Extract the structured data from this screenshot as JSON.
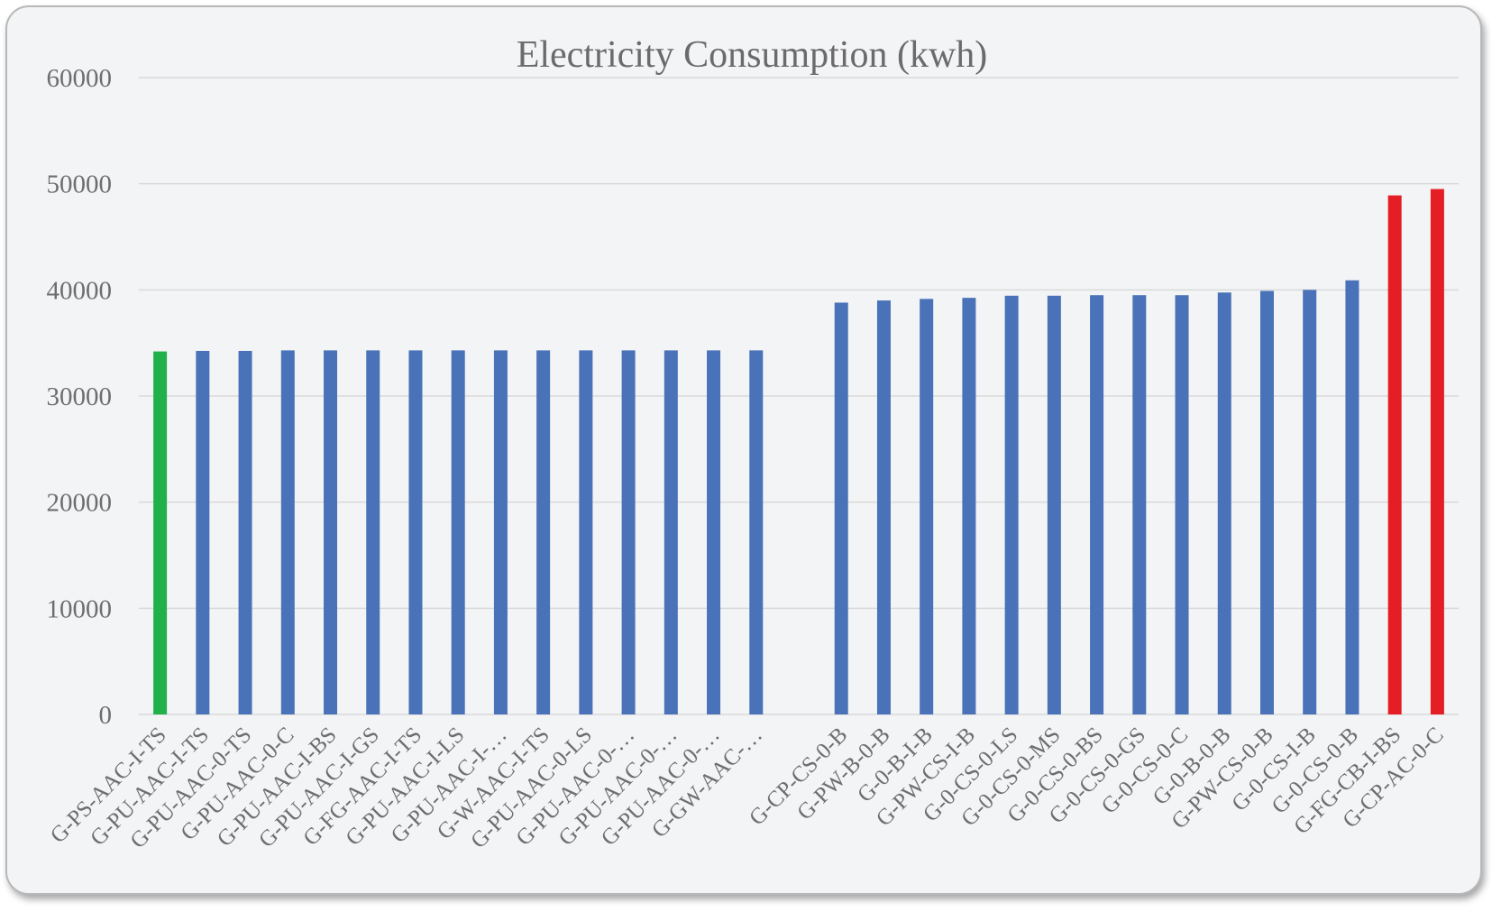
{
  "chart_data": {
    "type": "bar",
    "title": "Electricity Consumption (kwh)",
    "xlabel": "",
    "ylabel": "",
    "ylim": [
      0,
      60000
    ],
    "yticks": [
      0,
      10000,
      20000,
      30000,
      40000,
      50000,
      60000
    ],
    "ytick_labels": [
      "0",
      "10000",
      "20000",
      "30000",
      "40000",
      "50000",
      "60000"
    ],
    "grid": true,
    "legend": "none",
    "colors": {
      "lowest": "#21b04b",
      "default": "#4a72b8",
      "highest": "#e51e25",
      "grid": "#d9d9d9"
    },
    "categories": [
      "G-PS-AAC-I-TS",
      "G-PU-AAC-I-TS",
      "G-PU-AAC-0-TS",
      "G-PU-AAC-0-C",
      "G-PU-AAC-I-BS",
      "G-PU-AAC-I-GS",
      "G-FG-AAC-I-TS",
      "G-PU-AAC-I-LS",
      "G-PU-AAC-I-…",
      "G-W-AAC-I-TS",
      "G-PU-AAC-0-LS",
      "G-PU-AAC-0-…",
      "G-PU-AAC-0-…",
      "G-PU-AAC-0-…",
      "G-GW-AAC-…",
      "",
      "G-CP-CS-0-B",
      "G-PW-B-0-B",
      "G-0-B-I-B",
      "G-PW-CS-I-B",
      "G-0-CS-0-LS",
      "G-0-CS-0-MS",
      "G-0-CS-0-BS",
      "G-0-CS-0-GS",
      "G-0-CS-0-C",
      "G-0-B-0-B",
      "G-PW-CS-0-B",
      "G-0-CS-I-B",
      "G-0-CS-0-B",
      "G-FG-CB-I-BS",
      "G-CP-AC-0-C"
    ],
    "values": [
      34200,
      34250,
      34250,
      34300,
      34300,
      34300,
      34300,
      34300,
      34300,
      34300,
      34300,
      34300,
      34300,
      34300,
      34300,
      null,
      38800,
      39000,
      39150,
      39250,
      39450,
      39450,
      39500,
      39500,
      39500,
      39750,
      39900,
      40000,
      40900,
      48900,
      49500
    ],
    "bar_color_keys": [
      "lowest",
      "default",
      "default",
      "default",
      "default",
      "default",
      "default",
      "default",
      "default",
      "default",
      "default",
      "default",
      "default",
      "default",
      "default",
      "default",
      "default",
      "default",
      "default",
      "default",
      "default",
      "default",
      "default",
      "default",
      "default",
      "default",
      "default",
      "default",
      "default",
      "highest",
      "highest"
    ]
  }
}
